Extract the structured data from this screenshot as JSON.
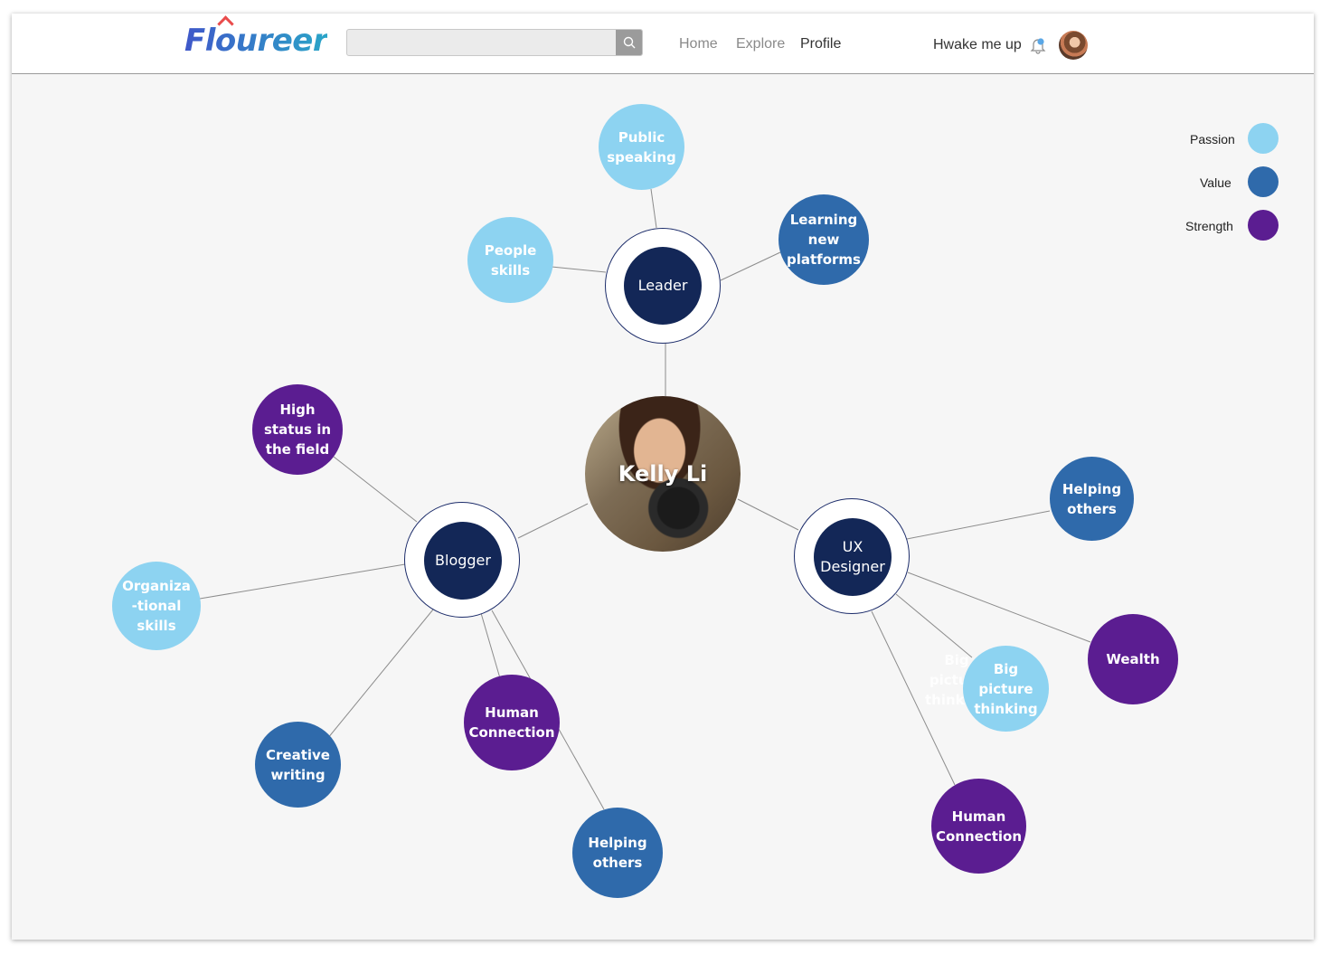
{
  "header": {
    "logo": "Floureer",
    "search": {
      "value": "",
      "placeholder": ""
    },
    "nav": [
      "Home",
      "Explore",
      "Profile"
    ],
    "active_nav": "Profile",
    "wake_label": "Hwake me up",
    "icons": [
      "search-icon",
      "bell-icon",
      "avatar"
    ]
  },
  "legend": [
    {
      "label": "Passion",
      "color": "#8dd3f1"
    },
    {
      "label": "Value",
      "color": "#2f6aab"
    },
    {
      "label": "Strength",
      "color": "#5b1d91"
    }
  ],
  "graph": {
    "center": "Kelly Li",
    "hubs": [
      {
        "label": "Leader",
        "nodes": [
          {
            "label": "Public speaking",
            "type": "Passion"
          },
          {
            "label": "People skills",
            "type": "Passion"
          },
          {
            "label": "Learning new platforms",
            "type": "Value"
          }
        ]
      },
      {
        "label": "Blogger",
        "nodes": [
          {
            "label": "High status in the field",
            "type": "Strength"
          },
          {
            "label": "Organiza -tional skills",
            "type": "Passion"
          },
          {
            "label": "Creative writing",
            "type": "Value"
          },
          {
            "label": "Human Connection",
            "type": "Strength"
          },
          {
            "label": "Helping others",
            "type": "Value"
          }
        ]
      },
      {
        "label": "UX Designer",
        "nodes": [
          {
            "label": "Helping others",
            "type": "Value"
          },
          {
            "label": "Wealth",
            "type": "Strength"
          },
          {
            "label": "Big picture thinking",
            "type": "Passion"
          },
          {
            "label": "Human Connection",
            "type": "Strength"
          }
        ]
      }
    ],
    "ghost_label": "Big picture thinking"
  }
}
